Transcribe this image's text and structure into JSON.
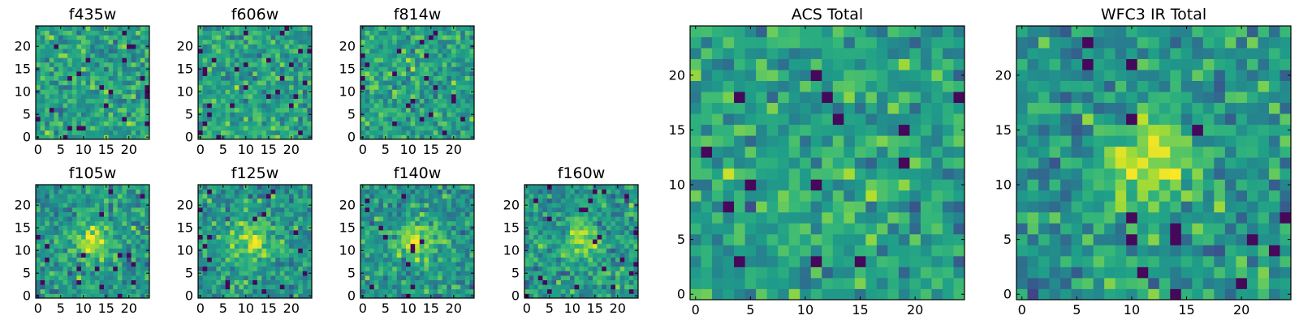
{
  "chart_data": [
    {
      "type": "heatmap",
      "title": "f435w",
      "colormap": "viridis",
      "pixel_grid": [
        25,
        25
      ],
      "xlim": [
        -0.5,
        24.5
      ],
      "ylim": [
        -0.5,
        24.5
      ],
      "xticks": [
        0,
        5,
        10,
        15,
        20
      ],
      "yticks": [
        0,
        5,
        10,
        15,
        20
      ],
      "field": "noise",
      "seed": 11
    },
    {
      "type": "heatmap",
      "title": "f606w",
      "colormap": "viridis",
      "pixel_grid": [
        25,
        25
      ],
      "xlim": [
        -0.5,
        24.5
      ],
      "ylim": [
        -0.5,
        24.5
      ],
      "xticks": [
        0,
        5,
        10,
        15,
        20
      ],
      "yticks": [
        0,
        5,
        10,
        15,
        20
      ],
      "field": "noise",
      "seed": 23
    },
    {
      "type": "heatmap",
      "title": "f814w",
      "colormap": "viridis",
      "pixel_grid": [
        25,
        25
      ],
      "xlim": [
        -0.5,
        24.5
      ],
      "ylim": [
        -0.5,
        24.5
      ],
      "xticks": [
        0,
        5,
        10,
        15,
        20
      ],
      "yticks": [
        0,
        5,
        10,
        15,
        20
      ],
      "field": "noise",
      "seed": 37
    },
    {
      "type": "heatmap",
      "title": "f105w",
      "colormap": "viridis",
      "pixel_grid": [
        25,
        25
      ],
      "xlim": [
        -0.5,
        24.5
      ],
      "ylim": [
        -0.5,
        24.5
      ],
      "xticks": [
        0,
        5,
        10,
        15,
        20
      ],
      "yticks": [
        0,
        5,
        10,
        15,
        20
      ],
      "field": "noise_with_source",
      "seed": 41
    },
    {
      "type": "heatmap",
      "title": "f125w",
      "colormap": "viridis",
      "pixel_grid": [
        25,
        25
      ],
      "xlim": [
        -0.5,
        24.5
      ],
      "ylim": [
        -0.5,
        24.5
      ],
      "xticks": [
        0,
        5,
        10,
        15,
        20
      ],
      "yticks": [
        0,
        5,
        10,
        15,
        20
      ],
      "field": "noise_with_source",
      "seed": 53
    },
    {
      "type": "heatmap",
      "title": "f140w",
      "colormap": "viridis",
      "pixel_grid": [
        25,
        25
      ],
      "xlim": [
        -0.5,
        24.5
      ],
      "ylim": [
        -0.5,
        24.5
      ],
      "xticks": [
        0,
        5,
        10,
        15,
        20
      ],
      "yticks": [
        0,
        5,
        10,
        15,
        20
      ],
      "field": "noise_with_source",
      "seed": 67
    },
    {
      "type": "heatmap",
      "title": "f160w",
      "colormap": "viridis",
      "pixel_grid": [
        25,
        25
      ],
      "xlim": [
        -0.5,
        24.5
      ],
      "ylim": [
        -0.5,
        24.5
      ],
      "xticks": [
        0,
        5,
        10,
        15,
        20
      ],
      "yticks": [
        0,
        5,
        10,
        15,
        20
      ],
      "field": "noise_with_source",
      "seed": 79
    },
    {
      "type": "heatmap",
      "title": "ACS Total",
      "colormap": "viridis",
      "pixel_grid": [
        25,
        25
      ],
      "xlim": [
        -0.5,
        24.5
      ],
      "ylim": [
        -0.5,
        24.5
      ],
      "xticks": [
        0,
        5,
        10,
        15,
        20
      ],
      "yticks": [
        0,
        5,
        10,
        15,
        20
      ],
      "field": "noise",
      "seed": 89
    },
    {
      "type": "heatmap",
      "title": "WFC3 IR Total",
      "colormap": "viridis",
      "pixel_grid": [
        25,
        25
      ],
      "xlim": [
        -0.5,
        24.5
      ],
      "ylim": [
        -0.5,
        24.5
      ],
      "xticks": [
        0,
        5,
        10,
        15,
        20
      ],
      "yticks": [
        0,
        5,
        10,
        15,
        20
      ],
      "field": "noise_with_source",
      "seed": 97
    }
  ]
}
